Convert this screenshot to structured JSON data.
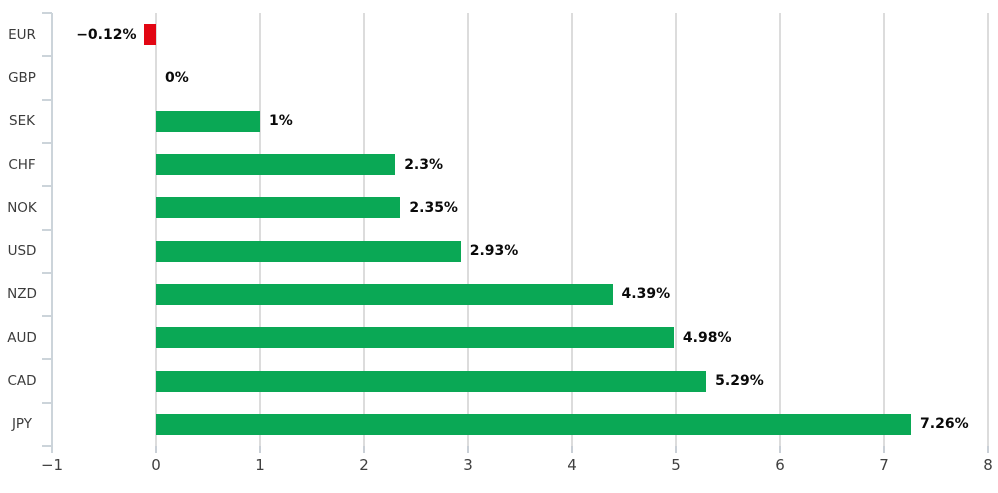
{
  "chart_data": {
    "type": "bar",
    "orientation": "horizontal",
    "categories": [
      "EUR",
      "GBP",
      "SEK",
      "CHF",
      "NOK",
      "USD",
      "NZD",
      "AUD",
      "CAD",
      "JPY"
    ],
    "values": [
      -0.12,
      0,
      1,
      2.3,
      2.35,
      2.93,
      4.39,
      4.98,
      5.29,
      7.26
    ],
    "value_labels": [
      "−0.12%",
      "0%",
      "1%",
      "2.3%",
      "2.35%",
      "2.93%",
      "4.39%",
      "4.98%",
      "5.29%",
      "7.26%"
    ],
    "x_ticks": [
      -1,
      0,
      1,
      2,
      3,
      4,
      5,
      6,
      7,
      8
    ],
    "x_tick_labels": [
      "−1",
      "0",
      "1",
      "2",
      "3",
      "4",
      "5",
      "6",
      "7",
      "8"
    ],
    "xlim": [
      -1,
      8
    ],
    "grid": true,
    "legend_position": "none",
    "colors": {
      "positive_bar": "#0aa855",
      "negative_bar": "#e20613",
      "gridline": "#dcdcdc",
      "axis_line": "#ccd4da",
      "x_tick_label": "#404040",
      "category_label": "#3c3c3c",
      "value_label": "#0a0a0a",
      "background": "#ffffff"
    }
  }
}
